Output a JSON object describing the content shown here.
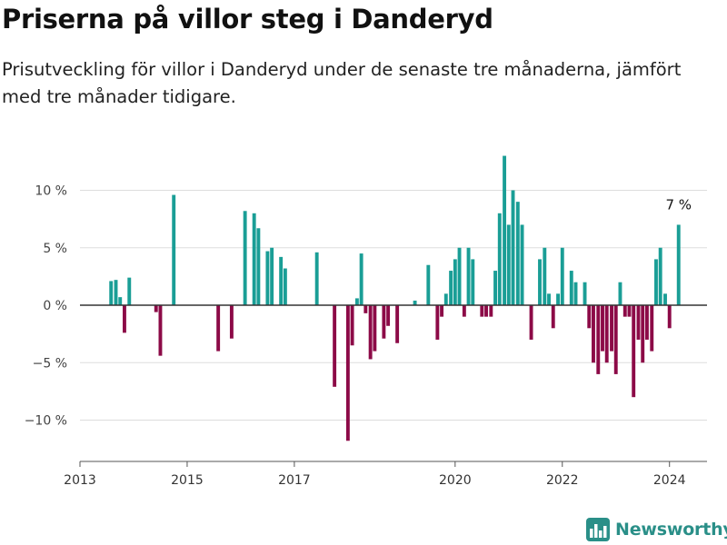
{
  "title": "Priserna på villor steg i Danderyd",
  "subtitle": "Prisutveckling för villor i Danderyd under de senaste tre månaderna, jämfört med tre månader tidigare.",
  "brand": {
    "name": "Newsworthy",
    "icon": "newsworthy-logo-icon",
    "color": "#2a8f88"
  },
  "colors": {
    "positive": "#1a9e96",
    "negative": "#8c0a47",
    "grid": "#dddddd",
    "zero_line": "#333333"
  },
  "chart_data": {
    "type": "bar",
    "x_unit": "decimal year (monthly)",
    "ylim": [
      -13.5,
      14
    ],
    "xlim": [
      2013,
      2024.7
    ],
    "yticks": [
      10,
      5,
      0,
      -5,
      -10
    ],
    "ytick_labels": [
      "10 %",
      "5 %",
      "0 %",
      "−5 %",
      "−10 %"
    ],
    "xticks": [
      2013,
      2015,
      2017,
      2020,
      2022,
      2024
    ],
    "xtick_labels": [
      "2013",
      "2015",
      "2017",
      "2020",
      "2022",
      "2024"
    ],
    "grid": true,
    "annotation": {
      "text": "7 %",
      "x": 2024.17,
      "y": 7
    },
    "points": [
      {
        "x": 2013.58,
        "y": 2.1
      },
      {
        "x": 2013.67,
        "y": 2.2
      },
      {
        "x": 2013.75,
        "y": 0.7
      },
      {
        "x": 2013.83,
        "y": -2.4
      },
      {
        "x": 2013.92,
        "y": 2.4
      },
      {
        "x": 2014.42,
        "y": -0.6
      },
      {
        "x": 2014.5,
        "y": -4.4
      },
      {
        "x": 2014.75,
        "y": 9.6
      },
      {
        "x": 2015.58,
        "y": -4.0
      },
      {
        "x": 2015.83,
        "y": -2.9
      },
      {
        "x": 2016.08,
        "y": 8.2
      },
      {
        "x": 2016.25,
        "y": 8.0
      },
      {
        "x": 2016.33,
        "y": 6.7
      },
      {
        "x": 2016.5,
        "y": 4.7
      },
      {
        "x": 2016.58,
        "y": 5.0
      },
      {
        "x": 2016.75,
        "y": 4.2
      },
      {
        "x": 2016.83,
        "y": 3.2
      },
      {
        "x": 2017.42,
        "y": 4.6
      },
      {
        "x": 2017.75,
        "y": -7.1
      },
      {
        "x": 2018.0,
        "y": -11.8
      },
      {
        "x": 2018.08,
        "y": -3.5
      },
      {
        "x": 2018.17,
        "y": 0.6
      },
      {
        "x": 2018.25,
        "y": 4.5
      },
      {
        "x": 2018.33,
        "y": -0.7
      },
      {
        "x": 2018.42,
        "y": -4.7
      },
      {
        "x": 2018.5,
        "y": -4.0
      },
      {
        "x": 2018.67,
        "y": -2.9
      },
      {
        "x": 2018.75,
        "y": -1.8
      },
      {
        "x": 2018.92,
        "y": -3.3
      },
      {
        "x": 2019.25,
        "y": 0.4
      },
      {
        "x": 2019.5,
        "y": 3.5
      },
      {
        "x": 2019.67,
        "y": -3.0
      },
      {
        "x": 2019.75,
        "y": -1.0
      },
      {
        "x": 2019.83,
        "y": 1.0
      },
      {
        "x": 2019.92,
        "y": 3.0
      },
      {
        "x": 2020.0,
        "y": 4.0
      },
      {
        "x": 2020.08,
        "y": 5.0
      },
      {
        "x": 2020.17,
        "y": -1.0
      },
      {
        "x": 2020.25,
        "y": 5.0
      },
      {
        "x": 2020.33,
        "y": 4.0
      },
      {
        "x": 2020.5,
        "y": -1.0
      },
      {
        "x": 2020.58,
        "y": -1.0
      },
      {
        "x": 2020.67,
        "y": -1.0
      },
      {
        "x": 2020.75,
        "y": 3.0
      },
      {
        "x": 2020.83,
        "y": 8.0
      },
      {
        "x": 2020.92,
        "y": 13.0
      },
      {
        "x": 2021.0,
        "y": 7.0
      },
      {
        "x": 2021.08,
        "y": 10.0
      },
      {
        "x": 2021.17,
        "y": 9.0
      },
      {
        "x": 2021.25,
        "y": 7.0
      },
      {
        "x": 2021.42,
        "y": -3.0
      },
      {
        "x": 2021.58,
        "y": 4.0
      },
      {
        "x": 2021.67,
        "y": 5.0
      },
      {
        "x": 2021.75,
        "y": 1.0
      },
      {
        "x": 2021.83,
        "y": -2.0
      },
      {
        "x": 2021.92,
        "y": 1.0
      },
      {
        "x": 2022.0,
        "y": 5.0
      },
      {
        "x": 2022.17,
        "y": 3.0
      },
      {
        "x": 2022.25,
        "y": 2.0
      },
      {
        "x": 2022.42,
        "y": 2.0
      },
      {
        "x": 2022.5,
        "y": -2.0
      },
      {
        "x": 2022.58,
        "y": -5.0
      },
      {
        "x": 2022.67,
        "y": -6.0
      },
      {
        "x": 2022.75,
        "y": -4.0
      },
      {
        "x": 2022.83,
        "y": -5.0
      },
      {
        "x": 2022.92,
        "y": -4.0
      },
      {
        "x": 2023.0,
        "y": -6.0
      },
      {
        "x": 2023.08,
        "y": 2.0
      },
      {
        "x": 2023.17,
        "y": -1.0
      },
      {
        "x": 2023.25,
        "y": -1.0
      },
      {
        "x": 2023.33,
        "y": -8.0
      },
      {
        "x": 2023.42,
        "y": -3.0
      },
      {
        "x": 2023.5,
        "y": -5.0
      },
      {
        "x": 2023.58,
        "y": -3.0
      },
      {
        "x": 2023.67,
        "y": -4.0
      },
      {
        "x": 2023.75,
        "y": 4.0
      },
      {
        "x": 2023.83,
        "y": 5.0
      },
      {
        "x": 2023.92,
        "y": 1.0
      },
      {
        "x": 2024.0,
        "y": -2.0
      },
      {
        "x": 2024.17,
        "y": 7.0
      }
    ]
  }
}
